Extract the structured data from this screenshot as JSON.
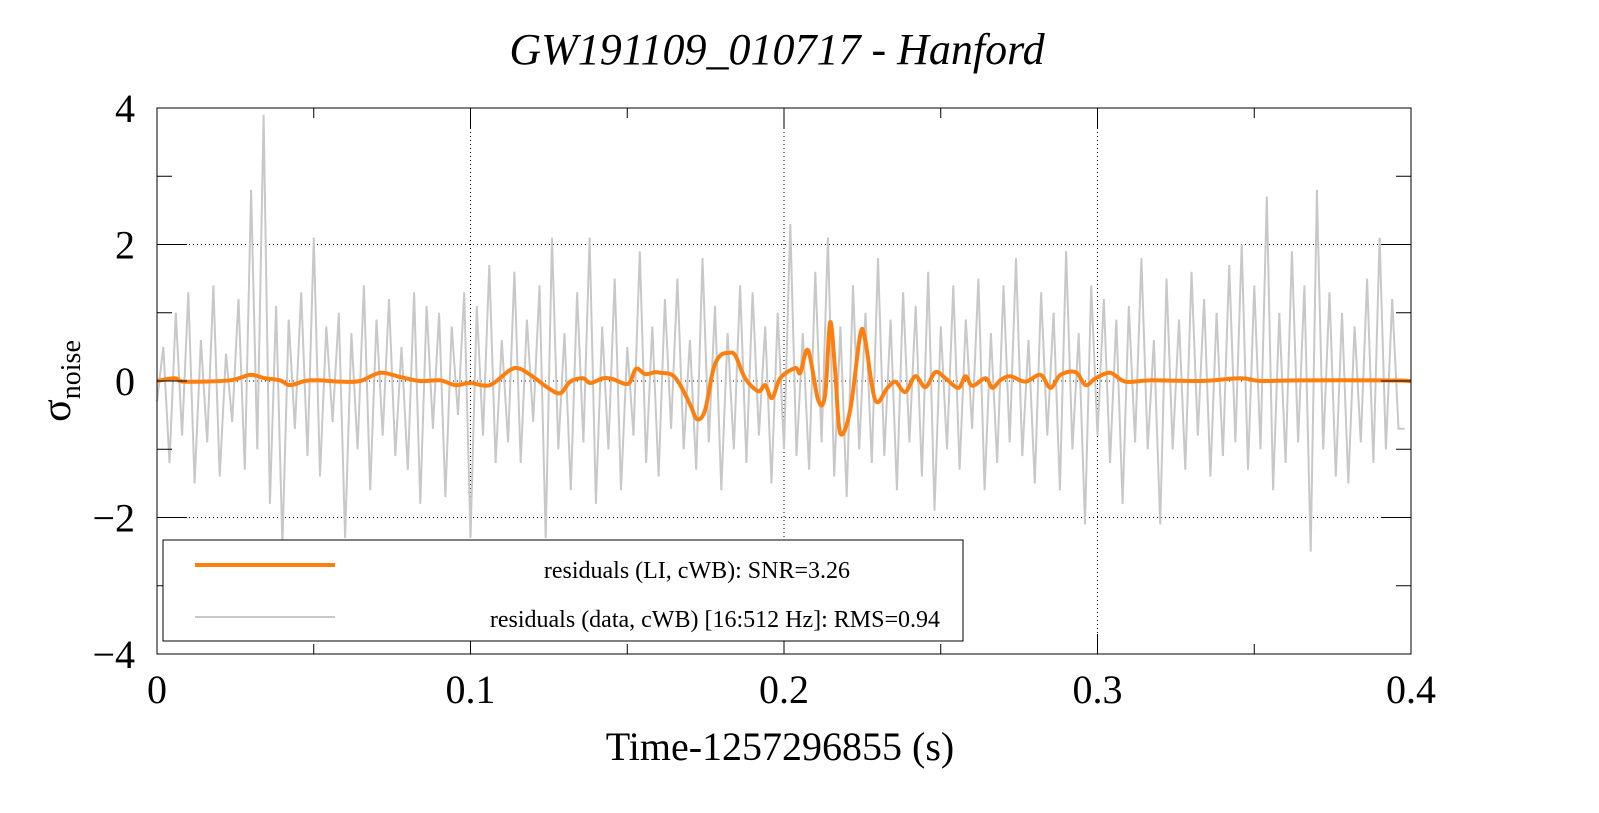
{
  "chart_data": {
    "type": "line",
    "title": "GW191109_010717 - Hanford",
    "xlabel": "Time-1257296855 (s)",
    "ylabel": "σ",
    "ylabel_sub": "noise",
    "xlim": [
      0,
      0.4
    ],
    "ylim": [
      -4,
      4
    ],
    "xticks": [
      0,
      0.1,
      0.2,
      0.3,
      0.4
    ],
    "xtick_labels": [
      "0",
      "0.1",
      "0.2",
      "0.3",
      "0.4"
    ],
    "yticks": [
      -4,
      -2,
      0,
      2,
      4
    ],
    "ytick_labels": [
      "−4",
      "−2",
      "0",
      "2",
      "4"
    ],
    "grid": true,
    "legend_position": "bottom-left",
    "series": [
      {
        "name": "residuals (data, cWB) [16:512 Hz]: RMS=0.94",
        "color": "#c8c8c8",
        "dt": 0.002,
        "values": [
          -0.3,
          0.5,
          -1.2,
          1.0,
          -0.8,
          1.3,
          -1.5,
          0.6,
          -0.9,
          1.4,
          -1.4,
          0.4,
          -0.6,
          1.2,
          -1.3,
          2.8,
          -1.0,
          3.9,
          -1.8,
          1.1,
          -2.4,
          0.9,
          -0.7,
          1.3,
          -1.1,
          2.1,
          -1.4,
          0.8,
          -0.6,
          1.0,
          -2.3,
          0.7,
          -1.0,
          1.4,
          -1.6,
          0.9,
          -0.8,
          1.2,
          -1.1,
          0.5,
          -1.3,
          1.3,
          -1.8,
          1.1,
          -0.7,
          1.0,
          -1.7,
          0.8,
          -0.5,
          1.3,
          -2.3,
          1.1,
          -0.8,
          1.7,
          -1.2,
          0.6,
          -0.9,
          1.6,
          -1.2,
          0.9,
          -0.6,
          1.4,
          -2.3,
          2.1,
          -1.0,
          0.7,
          -1.6,
          1.3,
          -0.9,
          2.1,
          -1.8,
          0.8,
          -1.0,
          1.5,
          -1.6,
          0.5,
          -0.8,
          1.9,
          -1.2,
          0.8,
          -1.4,
          1.2,
          -0.7,
          1.5,
          -1.0,
          0.6,
          -1.3,
          1.8,
          -0.9,
          1.1,
          -1.6,
          0.7,
          -1.0,
          1.4,
          -1.2,
          1.3,
          -0.8,
          0.8,
          -1.5,
          1.0,
          -1.0,
          2.3,
          -1.1,
          0.7,
          -1.3,
          1.6,
          -0.9,
          2.1,
          -1.4,
          0.8,
          -1.7,
          1.4,
          -1.0,
          1.0,
          -1.2,
          1.8,
          -1.1,
          0.9,
          -1.6,
          1.3,
          -0.9,
          1.1,
          -1.4,
          1.6,
          -1.9,
          0.8,
          -1.0,
          1.4,
          -1.3,
          0.9,
          -0.7,
          1.5,
          -1.6,
          0.7,
          -1.2,
          1.4,
          -0.9,
          1.8,
          -1.1,
          0.6,
          -1.5,
          1.3,
          -0.8,
          1.0,
          -1.6,
          1.9,
          -1.0,
          0.7,
          -2.1,
          1.4,
          -0.8,
          1.2,
          -1.2,
          0.9,
          -1.8,
          1.1,
          -0.9,
          1.8,
          -1.0,
          0.6,
          -2.1,
          1.5,
          -1.0,
          0.9,
          -1.3,
          1.6,
          -0.8,
          1.2,
          -1.4,
          1.0,
          -1.1,
          1.7,
          -0.9,
          2.0,
          -1.3,
          1.4,
          -1.0,
          2.7,
          -1.6,
          1.0,
          -1.2,
          1.9,
          -0.9,
          1.4,
          -2.5,
          2.8,
          -1.0,
          1.3,
          -1.4,
          1.0,
          -1.5,
          0.8,
          -0.9,
          1.5,
          -1.2,
          2.1,
          -1.0,
          1.2,
          -0.7,
          -0.7
        ]
      },
      {
        "name": "residuals (LI, cWB): SNR=3.26",
        "color": "#ff7f0e",
        "points": [
          [
            0,
            0
          ],
          [
            0.0057,
            0.04
          ],
          [
            0.0089,
            -0.01
          ],
          [
            0.0233,
            0.01
          ],
          [
            0.0297,
            0.09
          ],
          [
            0.0345,
            0.04
          ],
          [
            0.0392,
            0.01
          ],
          [
            0.0424,
            -0.06
          ],
          [
            0.0472,
            0
          ],
          [
            0.052,
            0.01
          ],
          [
            0.0584,
            -0.01
          ],
          [
            0.0648,
            0
          ],
          [
            0.0712,
            0.12
          ],
          [
            0.0775,
            0.06
          ],
          [
            0.0839,
            0
          ],
          [
            0.0903,
            0.01
          ],
          [
            0.0951,
            -0.06
          ],
          [
            0.0999,
            -0.03
          ],
          [
            0.1062,
            -0.06
          ],
          [
            0.1126,
            0.16
          ],
          [
            0.1158,
            0.18
          ],
          [
            0.1206,
            0.04
          ],
          [
            0.1247,
            -0.1
          ],
          [
            0.1286,
            -0.18
          ],
          [
            0.1318,
            -0.01
          ],
          [
            0.1359,
            0.04
          ],
          [
            0.1382,
            -0.03
          ],
          [
            0.1423,
            0.04
          ],
          [
            0.1452,
            0.03
          ],
          [
            0.1503,
            -0.04
          ],
          [
            0.1528,
            0.18
          ],
          [
            0.1557,
            0.1
          ],
          [
            0.1589,
            0.13
          ],
          [
            0.1605,
            0.12
          ],
          [
            0.1643,
            0.09
          ],
          [
            0.1669,
            -0.06
          ],
          [
            0.1701,
            -0.35
          ],
          [
            0.1723,
            -0.56
          ],
          [
            0.1748,
            -0.43
          ],
          [
            0.1774,
            0.16
          ],
          [
            0.1796,
            0.37
          ],
          [
            0.1822,
            0.41
          ],
          [
            0.1844,
            0.38
          ],
          [
            0.1876,
            0.04
          ],
          [
            0.1918,
            -0.15
          ],
          [
            0.194,
            -0.06
          ],
          [
            0.1962,
            -0.25
          ],
          [
            0.1988,
            0.04
          ],
          [
            0.2036,
            0.19
          ],
          [
            0.2052,
            0.12
          ],
          [
            0.2077,
            0.45
          ],
          [
            0.2109,
            -0.28
          ],
          [
            0.2131,
            -0.21
          ],
          [
            0.2147,
            0.86
          ],
          [
            0.2163,
            0.16
          ],
          [
            0.2179,
            -0.76
          ],
          [
            0.2211,
            -0.43
          ],
          [
            0.2243,
            0.67
          ],
          [
            0.2259,
            0.6
          ],
          [
            0.2291,
            -0.28
          ],
          [
            0.233,
            -0.1
          ],
          [
            0.2355,
            -0.01
          ],
          [
            0.2387,
            -0.16
          ],
          [
            0.2419,
            0.07
          ],
          [
            0.2451,
            -0.09
          ],
          [
            0.2483,
            0.13
          ],
          [
            0.2515,
            0.04
          ],
          [
            0.2556,
            -0.1
          ],
          [
            0.2579,
            0.07
          ],
          [
            0.2601,
            -0.07
          ],
          [
            0.2643,
            0.04
          ],
          [
            0.2665,
            -0.1
          ],
          [
            0.269,
            0.01
          ],
          [
            0.2722,
            0.07
          ],
          [
            0.277,
            -0.01
          ],
          [
            0.2818,
            0.09
          ],
          [
            0.285,
            -0.1
          ],
          [
            0.2882,
            0.09
          ],
          [
            0.293,
            0.13
          ],
          [
            0.2962,
            -0.06
          ],
          [
            0.2994,
            0.04
          ],
          [
            0.3041,
            0.12
          ],
          [
            0.3089,
            -0.01
          ],
          [
            0.3169,
            0.01
          ],
          [
            0.3328,
            0
          ],
          [
            0.3456,
            0.04
          ],
          [
            0.352,
            0
          ],
          [
            0.3647,
            0.01
          ],
          [
            0.3918,
            0.01
          ],
          [
            0.4,
            0
          ]
        ]
      }
    ]
  }
}
